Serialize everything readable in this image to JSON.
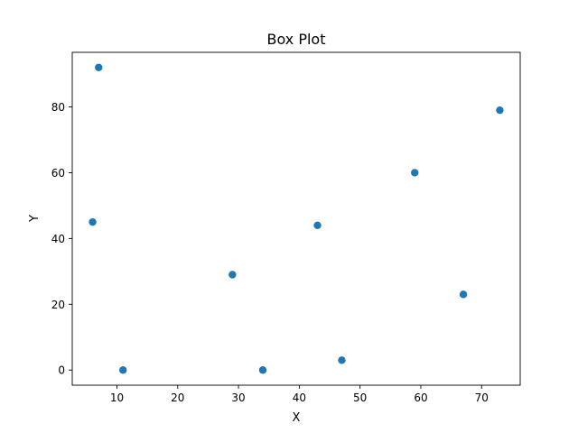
{
  "chart_data": {
    "type": "scatter",
    "title": "Box Plot",
    "xlabel": "X",
    "ylabel": "Y",
    "xlim": [
      2.65,
      76.35
    ],
    "ylim": [
      -4.6,
      96.6
    ],
    "xticks": [
      10,
      20,
      30,
      40,
      50,
      60,
      70
    ],
    "yticks": [
      0,
      20,
      40,
      60,
      80
    ],
    "grid": false,
    "points": [
      {
        "x": 7,
        "y": 92
      },
      {
        "x": 6,
        "y": 45
      },
      {
        "x": 11,
        "y": 0
      },
      {
        "x": 29,
        "y": 29
      },
      {
        "x": 34,
        "y": 0
      },
      {
        "x": 43,
        "y": 44
      },
      {
        "x": 47,
        "y": 3
      },
      {
        "x": 59,
        "y": 60
      },
      {
        "x": 67,
        "y": 23
      },
      {
        "x": 73,
        "y": 79
      }
    ],
    "color": "#1f77b4"
  }
}
